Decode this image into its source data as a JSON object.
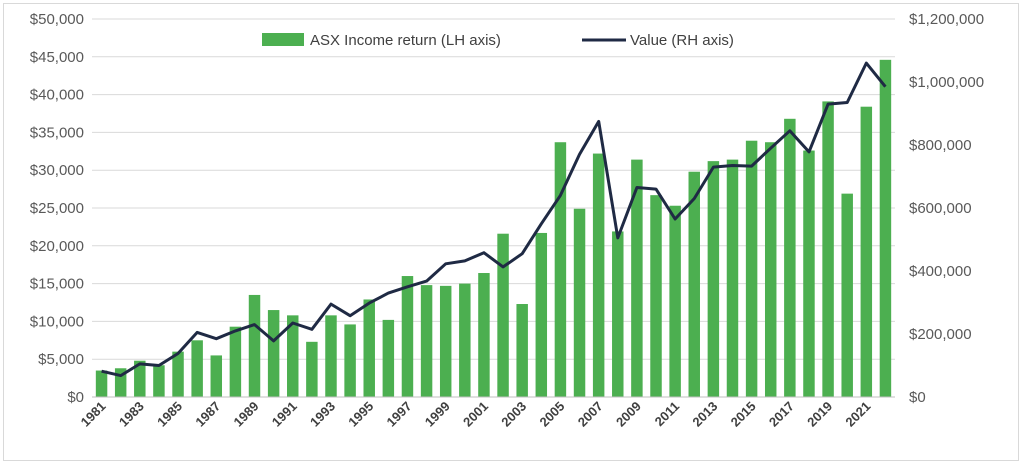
{
  "chart_data": {
    "type": "bar",
    "categories": [
      "1981",
      "1982",
      "1983",
      "1984",
      "1985",
      "1986",
      "1987",
      "1988",
      "1989",
      "1990",
      "1991",
      "1992",
      "1993",
      "1994",
      "1995",
      "1996",
      "1997",
      "1998",
      "1999",
      "2000",
      "2001",
      "2002",
      "2003",
      "2004",
      "2005",
      "2006",
      "2007",
      "2008",
      "2009",
      "2010",
      "2011",
      "2012",
      "2013",
      "2014",
      "2015",
      "2016",
      "2017",
      "2018",
      "2019",
      "2020",
      "2021",
      "2022"
    ],
    "x_tick_labels": [
      "1981",
      "1983",
      "1985",
      "1987",
      "1989",
      "1991",
      "1993",
      "1995",
      "1997",
      "1999",
      "2001",
      "2003",
      "2005",
      "2007",
      "2009",
      "2011",
      "2013",
      "2015",
      "2017",
      "2019",
      "2021"
    ],
    "series": [
      {
        "name": "ASX Income return (LH axis)",
        "type": "bar",
        "axis": "left",
        "color": "#4caf50",
        "values": [
          3500,
          3800,
          4800,
          4200,
          6000,
          7500,
          5500,
          9300,
          13500,
          11500,
          10800,
          7300,
          10800,
          9600,
          12900,
          10200,
          16000,
          14800,
          14700,
          15000,
          16400,
          21600,
          12300,
          21700,
          33700,
          24900,
          32200,
          21900,
          31400,
          26700,
          25300,
          29800,
          31200,
          31400,
          33900,
          33700,
          36800,
          32600,
          39100,
          26900,
          38400,
          44600
        ]
      },
      {
        "name": "Value (RH axis)",
        "type": "line",
        "axis": "right",
        "color": "#1f2a44",
        "values": [
          82000,
          68000,
          105000,
          100000,
          138000,
          205000,
          185000,
          210000,
          230000,
          178000,
          235000,
          215000,
          295000,
          258000,
          298000,
          330000,
          350000,
          368000,
          423000,
          432000,
          458000,
          413000,
          455000,
          550000,
          640000,
          770000,
          875000,
          505000,
          665000,
          660000,
          565000,
          630000,
          730000,
          735000,
          733000,
          790000,
          845000,
          778000,
          930000,
          935000,
          1060000,
          985000
        ]
      }
    ],
    "y_left": {
      "min": 0,
      "max": 50000,
      "ticks": [
        "$0",
        "$5,000",
        "$10,000",
        "$15,000",
        "$20,000",
        "$25,000",
        "$30,000",
        "$35,000",
        "$40,000",
        "$45,000",
        "$50,000"
      ]
    },
    "y_right": {
      "min": 0,
      "max": 1200000,
      "ticks": [
        "$0",
        "$200,000",
        "$400,000",
        "$600,000",
        "$800,000",
        "$1,000,000",
        "$1,200,000"
      ]
    },
    "grid": true,
    "legend_position": "top-center",
    "title": "",
    "xlabel": "",
    "ylabel": ""
  }
}
